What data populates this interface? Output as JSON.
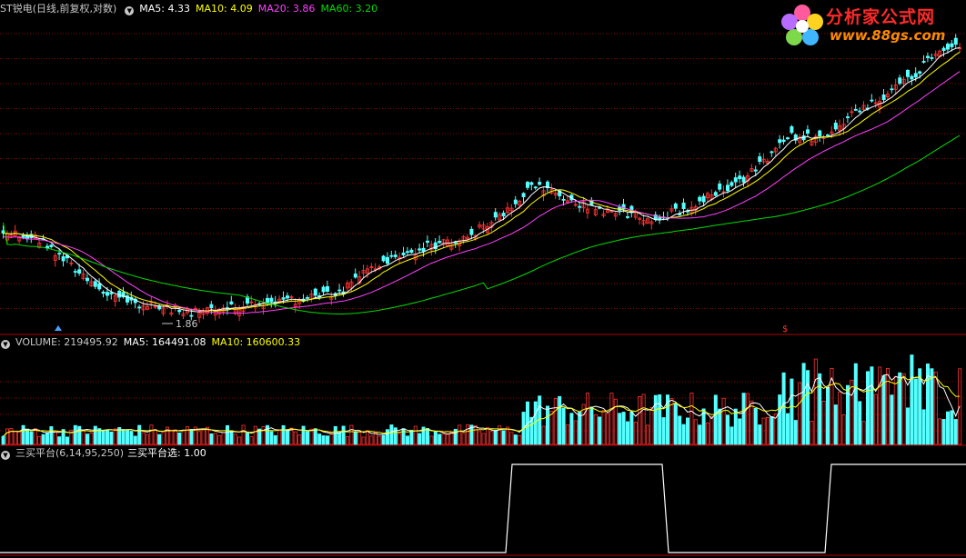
{
  "colors": {
    "ma5": "#ffffff",
    "ma10": "#ffff00",
    "ma20": "#ff40ff",
    "ma60": "#00dd00",
    "up": "#ff3333",
    "down": "#55ffff",
    "grid": "#8b0000",
    "separator": "#b00000",
    "signal": "#ffffff"
  },
  "price_panel": {
    "stock_label": "ST锐电",
    "mode_label": "(日线,前复权,对数)",
    "indicators": [
      {
        "name": "MA5",
        "text": "MA5: 4.33",
        "color": "#ffffff"
      },
      {
        "name": "MA10",
        "text": "MA10: 4.09",
        "color": "#ffff00"
      },
      {
        "name": "MA20",
        "text": "MA20: 3.86",
        "color": "#ff40ff"
      },
      {
        "name": "MA60",
        "text": "MA60: 3.20",
        "color": "#00dd00"
      }
    ],
    "low_marker_label": "1.86"
  },
  "volume_panel": {
    "label": "VOLUME: 219495.92",
    "ma5_label": "MA5: 164491.08",
    "ma10_label": "MA10: 160600.33"
  },
  "signal_panel": {
    "label": "三买平台(6,14,95,250)",
    "value_label": "三买平台选: 1.00"
  },
  "logo": {
    "title": "分析家公式网",
    "url_text": "www.88gs.com"
  },
  "chart_data": [
    {
      "type": "candlestick",
      "title": "ST锐电",
      "series": [
        {
          "name": "MA5",
          "last_value": 4.33
        },
        {
          "name": "MA10",
          "last_value": 4.09
        },
        {
          "name": "MA20",
          "last_value": 3.86
        },
        {
          "name": "MA60",
          "last_value": 3.2
        }
      ],
      "low_value": 1.86,
      "bars": 240
    },
    {
      "type": "bar",
      "title": "VOLUME",
      "last_value": 219495.92,
      "series": [
        {
          "name": "MA5",
          "last_value": 164491.08
        },
        {
          "name": "MA10",
          "last_value": 160600.33
        }
      ]
    },
    {
      "type": "line",
      "title": "三买平台(6,14,95,250)",
      "series": [
        {
          "name": "三买平台选",
          "last_value": 1.0
        }
      ],
      "segments": [
        {
          "state": 0
        },
        {
          "state": 1
        },
        {
          "state": 0
        },
        {
          "state": 1
        }
      ]
    }
  ]
}
